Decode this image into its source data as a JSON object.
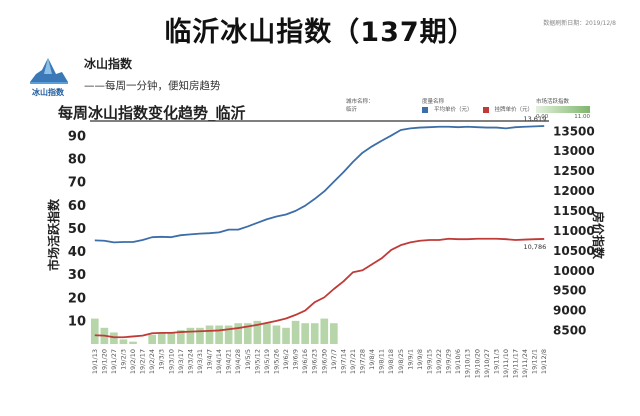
{
  "header": {
    "title": "临沂冰山指数（137期）",
    "update_date": "数据刷新日期：2019/12/8"
  },
  "brand": {
    "logo_text": "冰山指数",
    "name": "冰山指数",
    "slogan": "——每周一分钟，便知房趋势"
  },
  "filters": {
    "city_label": "城市名称：",
    "city_value": "临沂",
    "metric_label": "度量名称",
    "legend_avg": "平均单价（元）",
    "legend_list": "挂牌单价（元）",
    "activity_label": "市场活跃指数",
    "activity_min": "0.00",
    "activity_max": "11.00"
  },
  "chart_data": {
    "type": "line",
    "title": "每周冰山指数变化趋势_临沂",
    "ylabel_left": "市场活跃指数",
    "ylabel_right": "房价指数",
    "y_left_ticks": [
      10,
      20,
      30,
      40,
      50,
      60,
      70,
      80,
      90
    ],
    "ylim_left": [
      0,
      96
    ],
    "y_right_ticks": [
      8500,
      9000,
      9500,
      10000,
      10500,
      11000,
      11500,
      12000,
      12500,
      13000,
      13500
    ],
    "ylim_right": [
      8150,
      13720
    ],
    "x": [
      "19/1/13",
      "19/1/20",
      "19/1/27",
      "19/2/3",
      "19/2/10",
      "19/2/17",
      "19/2/24",
      "19/3/3",
      "19/3/10",
      "19/3/17",
      "19/3/24",
      "19/3/31",
      "19/4/7",
      "19/4/14",
      "19/4/21",
      "19/4/28",
      "19/5/5",
      "19/5/12",
      "19/5/19",
      "19/5/26",
      "19/6/2",
      "19/6/9",
      "19/6/16",
      "19/6/23",
      "19/6/30",
      "19/7/7",
      "19/7/14",
      "19/7/21",
      "19/7/28",
      "19/8/4",
      "19/8/11",
      "19/8/18",
      "19/8/25",
      "19/9/1",
      "19/9/8",
      "19/9/15",
      "19/9/22",
      "19/9/29",
      "19/10/6",
      "19/10/13",
      "19/10/20",
      "19/10/27",
      "19/11/3",
      "19/11/10",
      "19/11/17",
      "19/11/24",
      "19/12/1",
      "19/12/8"
    ],
    "x_tick_labels": [
      "19/1/13",
      "19/1/20",
      "19/1/27",
      "19/2/3",
      "19/2/10",
      "19/2/17",
      "19/2/24",
      "19/3/3",
      "19/3/10",
      "19/3/17",
      "19/3/24",
      "19/3/31",
      "19/4/7",
      "19/4/14",
      "19/4/21",
      "19/4/28",
      "19/5/5",
      "19/5/12",
      "19/5/19",
      "19/5/26",
      "19/6/2",
      "19/6/9",
      "19/6/16",
      "19/6/23",
      "19/6/30",
      "19/7/7",
      "19/7/14",
      "19/7/21",
      "19/7/28",
      "19/8/4",
      "19/8/11",
      "19/8/18",
      "19/8/25",
      "19/9/1",
      "19/9/8",
      "19/9/15",
      "19/9/22",
      "19/9/29",
      "19/10/6",
      "19/10/13",
      "19/10/20",
      "19/10/27",
      "19/11/3",
      "19/11/10",
      "19/11/17",
      "19/11/24",
      "19/12/1",
      "19/12/8"
    ],
    "series": [
      {
        "name": "平均单价（元）",
        "axis": "right",
        "color": "#3c6ea8",
        "end_label": "13,619",
        "values": [
          10750,
          10740,
          10700,
          10710,
          10710,
          10760,
          10830,
          10840,
          10830,
          10880,
          10900,
          10920,
          10930,
          10950,
          11020,
          11020,
          11100,
          11190,
          11280,
          11350,
          11400,
          11490,
          11620,
          11790,
          11980,
          12220,
          12460,
          12720,
          12950,
          13110,
          13250,
          13380,
          13520,
          13560,
          13580,
          13590,
          13600,
          13600,
          13590,
          13600,
          13590,
          13580,
          13580,
          13560,
          13590,
          13600,
          13610,
          13619
        ]
      },
      {
        "name": "挂牌单价（元）",
        "axis": "right",
        "color": "#c03a38",
        "end_label": "10,786",
        "values": [
          8370,
          8360,
          8320,
          8320,
          8340,
          8360,
          8420,
          8430,
          8430,
          8450,
          8460,
          8470,
          8480,
          8490,
          8520,
          8550,
          8590,
          8630,
          8680,
          8730,
          8790,
          8880,
          8990,
          9200,
          9320,
          9530,
          9720,
          9950,
          10000,
          10150,
          10300,
          10510,
          10630,
          10700,
          10740,
          10760,
          10760,
          10790,
          10780,
          10780,
          10790,
          10790,
          10790,
          10780,
          10760,
          10770,
          10780,
          10786
        ]
      },
      {
        "name": "市场活跃指数",
        "axis": "left",
        "type": "bar",
        "color": "#a9cf9b",
        "values": [
          11,
          7,
          5,
          2,
          1,
          0,
          4,
          5,
          5,
          6,
          7,
          7,
          8,
          8,
          8,
          9,
          9,
          10,
          9,
          8,
          7,
          10,
          9,
          9,
          11,
          9,
          0,
          0,
          0,
          0,
          0,
          0,
          0,
          0,
          0,
          0,
          0,
          0,
          0,
          0,
          0,
          0,
          0,
          0,
          0,
          0,
          0,
          0
        ]
      }
    ]
  }
}
